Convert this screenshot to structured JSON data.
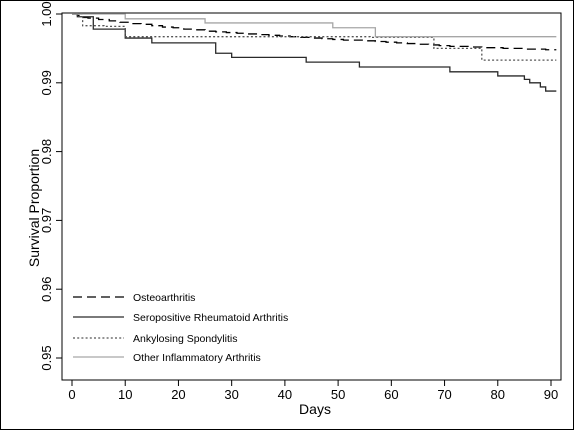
{
  "chart_data": {
    "type": "line",
    "step": true,
    "title": "",
    "xlabel": "Days",
    "ylabel": "Survival Proportion",
    "xlim": [
      0,
      92
    ],
    "ylim": [
      0.9485,
      1.0012
    ],
    "xticks": [
      0,
      10,
      20,
      30,
      40,
      50,
      60,
      70,
      80,
      90
    ],
    "xtick_labels": [
      "0",
      "10",
      "20",
      "30",
      "40",
      "50",
      "60",
      "70",
      "80",
      "90"
    ],
    "yticks": [
      0.95,
      0.96,
      0.97,
      0.98,
      0.99,
      1.0
    ],
    "ytick_labels": [
      "0.95",
      "0.96",
      "0.97",
      "0.98",
      "0.99",
      "1.00"
    ],
    "grid": false,
    "legend_position": "bottom-left",
    "series": [
      {
        "name": "Osteoarthritis",
        "color": "#000000",
        "dash": "long-dash",
        "points": [
          [
            0,
            1.0
          ],
          [
            1,
            0.9998
          ],
          [
            2,
            0.9995
          ],
          [
            3,
            0.9994
          ],
          [
            5,
            0.9992
          ],
          [
            7,
            0.999
          ],
          [
            9,
            0.9988
          ],
          [
            11,
            0.9986
          ],
          [
            13,
            0.9985
          ],
          [
            15,
            0.9983
          ],
          [
            17,
            0.9981
          ],
          [
            19,
            0.998
          ],
          [
            21,
            0.9978
          ],
          [
            23,
            0.9977
          ],
          [
            25,
            0.9975
          ],
          [
            27,
            0.9974
          ],
          [
            29,
            0.9973
          ],
          [
            31,
            0.9972
          ],
          [
            33,
            0.9971
          ],
          [
            35,
            0.997
          ],
          [
            37,
            0.9969
          ],
          [
            39,
            0.9968
          ],
          [
            41,
            0.9967
          ],
          [
            43,
            0.9966
          ],
          [
            45,
            0.9965
          ],
          [
            47,
            0.9964
          ],
          [
            49,
            0.9963
          ],
          [
            51,
            0.9962
          ],
          [
            53,
            0.9962
          ],
          [
            55,
            0.9961
          ],
          [
            57,
            0.996
          ],
          [
            59,
            0.9959
          ],
          [
            61,
            0.9958
          ],
          [
            63,
            0.9957
          ],
          [
            65,
            0.9956
          ],
          [
            67,
            0.9955
          ],
          [
            69,
            0.9954
          ],
          [
            71,
            0.9953
          ],
          [
            73,
            0.9953
          ],
          [
            75,
            0.9952
          ],
          [
            77,
            0.9951
          ],
          [
            79,
            0.9951
          ],
          [
            81,
            0.995
          ],
          [
            83,
            0.995
          ],
          [
            85,
            0.9949
          ],
          [
            87,
            0.9949
          ],
          [
            89,
            0.9948
          ],
          [
            91,
            0.9948
          ]
        ]
      },
      {
        "name": "Seropositive Rheumatoid Arthritis",
        "color": "#2a2a2a",
        "dash": "solid",
        "points": [
          [
            0,
            1.0
          ],
          [
            1,
            0.9996
          ],
          [
            4,
            0.9978
          ],
          [
            10,
            0.9965
          ],
          [
            15,
            0.9958
          ],
          [
            27,
            0.9943
          ],
          [
            30,
            0.9937
          ],
          [
            44,
            0.993
          ],
          [
            54,
            0.9923
          ],
          [
            71,
            0.9916
          ],
          [
            80,
            0.991
          ],
          [
            85,
            0.9905
          ],
          [
            86,
            0.99
          ],
          [
            88,
            0.9894
          ],
          [
            89,
            0.9888
          ],
          [
            91,
            0.9888
          ]
        ]
      },
      {
        "name": "Ankylosing Spondylitis",
        "color": "#555555",
        "dash": "dotted",
        "points": [
          [
            0,
            1.0
          ],
          [
            2,
            0.9983
          ],
          [
            5,
            0.9983
          ],
          [
            6,
            0.9982
          ],
          [
            10,
            0.9967
          ],
          [
            46,
            0.9967
          ],
          [
            56,
            0.9966
          ],
          [
            68,
            0.995
          ],
          [
            77,
            0.9933
          ],
          [
            91,
            0.9933
          ]
        ]
      },
      {
        "name": "Other Inflammatory Arthritis",
        "color": "#a6a6a6",
        "dash": "solid",
        "points": [
          [
            0,
            1.0
          ],
          [
            10,
            0.9993
          ],
          [
            24,
            0.9993
          ],
          [
            25,
            0.9987
          ],
          [
            48,
            0.9987
          ],
          [
            49,
            0.998
          ],
          [
            57,
            0.998
          ],
          [
            57,
            0.9967
          ],
          [
            91,
            0.9967
          ]
        ]
      }
    ]
  }
}
